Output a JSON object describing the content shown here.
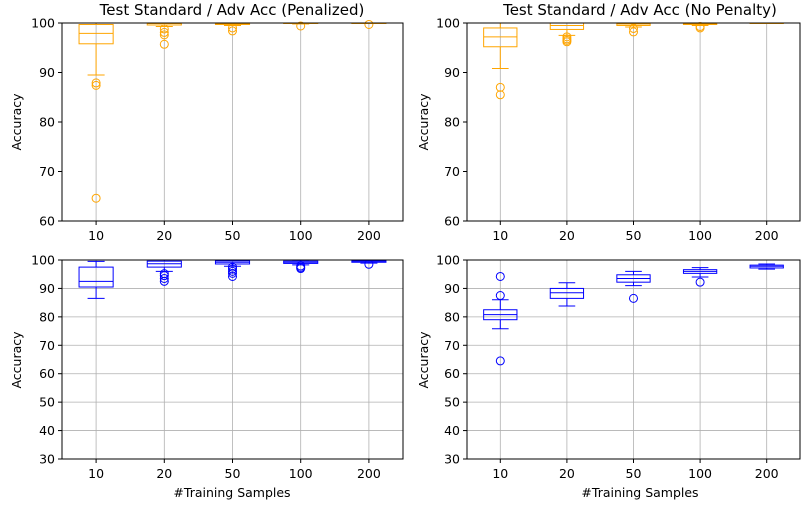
{
  "chart_data": [
    {
      "type": "boxplot",
      "title": "Test Standard / Adv Acc (Penalized)",
      "xlabel": "",
      "ylabel": "Accuracy",
      "ylim": [
        60,
        100
      ],
      "yticks": [
        60,
        70,
        80,
        90,
        100
      ],
      "categories": [
        "10",
        "20",
        "50",
        "100",
        "200"
      ],
      "color": "#FFA500",
      "grid": "vertical",
      "boxes": [
        {
          "whislo": 89.5,
          "q1": 95.8,
          "med": 97.9,
          "q3": 99.7,
          "whishi": 100,
          "fliers": [
            87.9,
            87.4,
            64.6
          ]
        },
        {
          "whislo": 99.3,
          "q1": 99.6,
          "med": 99.9,
          "q3": 100,
          "whishi": 100,
          "fliers": [
            98.8,
            98.1,
            97.6,
            95.7
          ]
        },
        {
          "whislo": 99.5,
          "q1": 99.7,
          "med": 99.9,
          "q3": 100,
          "whishi": 100,
          "fliers": [
            99.0,
            98.4
          ]
        },
        {
          "whislo": 99.8,
          "q1": 99.9,
          "med": 100,
          "q3": 100,
          "whishi": 100,
          "fliers": [
            99.4
          ]
        },
        {
          "whislo": 99.9,
          "q1": 99.95,
          "med": 100,
          "q3": 100,
          "whishi": 100,
          "fliers": [
            99.7
          ]
        }
      ]
    },
    {
      "type": "boxplot",
      "title": "Test Standard / Adv Acc (No Penalty)",
      "xlabel": "",
      "ylabel": "Accuracy",
      "ylim": [
        60,
        100
      ],
      "yticks": [
        60,
        70,
        80,
        90,
        100
      ],
      "categories": [
        "10",
        "20",
        "50",
        "100",
        "200"
      ],
      "color": "#FFA500",
      "grid": "vertical",
      "boxes": [
        {
          "whislo": 90.8,
          "q1": 95.2,
          "med": 97.2,
          "q3": 99.0,
          "whishi": 100,
          "fliers": [
            87.0,
            85.5
          ]
        },
        {
          "whislo": 97.5,
          "q1": 98.7,
          "med": 99.5,
          "q3": 100,
          "whishi": 100,
          "fliers": [
            97.2,
            96.8,
            96.5,
            96.2
          ]
        },
        {
          "whislo": 99.2,
          "q1": 99.5,
          "med": 99.8,
          "q3": 100,
          "whishi": 100,
          "fliers": [
            98.9,
            98.2
          ]
        },
        {
          "whislo": 99.5,
          "q1": 99.7,
          "med": 99.9,
          "q3": 100,
          "whishi": 100,
          "fliers": [
            99.3,
            99.0
          ]
        },
        {
          "whislo": 99.9,
          "q1": 99.95,
          "med": 100,
          "q3": 100,
          "whishi": 100,
          "fliers": []
        }
      ]
    },
    {
      "type": "boxplot",
      "title": "",
      "xlabel": "#Training Samples",
      "ylabel": "Accuracy",
      "ylim": [
        30,
        100
      ],
      "yticks": [
        30,
        40,
        50,
        60,
        70,
        80,
        90,
        100
      ],
      "categories": [
        "10",
        "20",
        "50",
        "100",
        "200"
      ],
      "color": "#0000FF",
      "grid": "both",
      "boxes": [
        {
          "whislo": 86.5,
          "q1": 90.5,
          "med": 92.5,
          "q3": 97.5,
          "whishi": 99.5,
          "fliers": []
        },
        {
          "whislo": 96.0,
          "q1": 97.5,
          "med": 98.7,
          "q3": 99.6,
          "whishi": 100,
          "fliers": [
            95.2,
            94.5,
            93.5,
            92.5
          ]
        },
        {
          "whislo": 97.8,
          "q1": 98.6,
          "med": 99.2,
          "q3": 99.7,
          "whishi": 100,
          "fliers": [
            97.5,
            96.8,
            96.0,
            95.3,
            94.2
          ]
        },
        {
          "whislo": 98.3,
          "q1": 98.8,
          "med": 99.2,
          "q3": 99.6,
          "whishi": 99.9,
          "fliers": [
            97.9,
            97.4,
            97.0
          ]
        },
        {
          "whislo": 98.9,
          "q1": 99.2,
          "med": 99.5,
          "q3": 99.7,
          "whishi": 99.9,
          "fliers": [
            98.5
          ]
        }
      ]
    },
    {
      "type": "boxplot",
      "title": "",
      "xlabel": "#Training Samples",
      "ylabel": "Accuracy",
      "ylim": [
        30,
        100
      ],
      "yticks": [
        30,
        40,
        50,
        60,
        70,
        80,
        90,
        100
      ],
      "categories": [
        "10",
        "20",
        "50",
        "100",
        "200"
      ],
      "color": "#0000FF",
      "grid": "both",
      "boxes": [
        {
          "whislo": 75.8,
          "q1": 79.0,
          "med": 80.8,
          "q3": 82.5,
          "whishi": 86.0,
          "fliers": [
            94.2,
            87.5,
            64.5
          ]
        },
        {
          "whislo": 83.8,
          "q1": 86.5,
          "med": 88.5,
          "q3": 90.0,
          "whishi": 92.0,
          "fliers": []
        },
        {
          "whislo": 91.0,
          "q1": 92.2,
          "med": 93.5,
          "q3": 94.8,
          "whishi": 96.0,
          "fliers": [
            86.5
          ]
        },
        {
          "whislo": 94.0,
          "q1": 95.3,
          "med": 96.0,
          "q3": 96.6,
          "whishi": 97.3,
          "fliers": [
            92.2
          ]
        },
        {
          "whislo": 96.8,
          "q1": 97.2,
          "med": 97.8,
          "q3": 98.2,
          "whishi": 98.6,
          "fliers": []
        }
      ]
    }
  ]
}
